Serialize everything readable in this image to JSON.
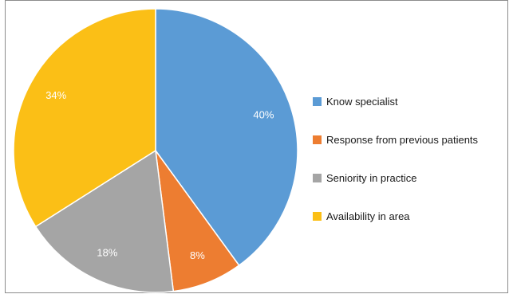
{
  "chart_data": {
    "type": "pie",
    "categories": [
      "Know specialist",
      "Response from previous patients",
      "Seniority in practice",
      "Availability in area"
    ],
    "values": [
      40,
      8,
      18,
      34
    ],
    "labels": [
      "40%",
      "8%",
      "18%",
      "34%"
    ],
    "colors": [
      "#5b9bd5",
      "#ed7d31",
      "#a5a5a5",
      "#fbbf16"
    ],
    "legend_position": "right",
    "start_angle": "12 o'clock",
    "direction": "clockwise"
  }
}
